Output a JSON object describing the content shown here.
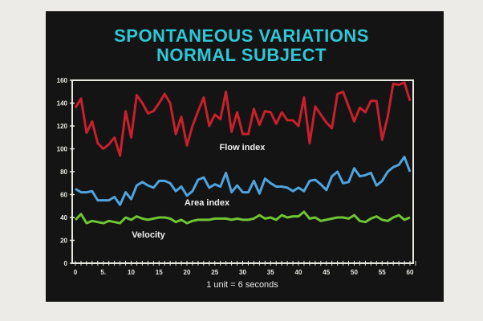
{
  "chart_data": {
    "type": "line",
    "title": "SPONTANEOUS VARIATIONS",
    "subtitle": "NORMAL SUBJECT",
    "xlabel": "1 unit = 6 seconds",
    "ylabel": "",
    "xlim": [
      0,
      61
    ],
    "ylim": [
      0,
      160
    ],
    "xticks": [
      0,
      5,
      10,
      15,
      20,
      25,
      30,
      35,
      40,
      45,
      50,
      55,
      60
    ],
    "xtick_labels": [
      "0",
      "5.",
      "10",
      "15",
      "20",
      "25",
      "30",
      "35",
      "40",
      "45",
      "50",
      "55",
      "60"
    ],
    "yticks": [
      0,
      20,
      40,
      60,
      80,
      100,
      120,
      140,
      160
    ],
    "grid": false,
    "background": "#141414",
    "series": [
      {
        "name": "Flow index",
        "color": "#c8202c",
        "values": [
          136,
          144,
          114,
          124,
          105,
          100,
          104,
          110,
          94,
          133,
          110,
          147,
          140,
          131,
          133,
          140,
          148,
          140,
          113,
          128,
          103,
          120,
          133,
          145,
          120,
          130,
          126,
          150,
          115,
          132,
          113,
          113,
          135,
          121,
          133,
          132,
          122,
          132,
          125,
          125,
          120,
          145,
          105,
          137,
          130,
          123,
          118,
          148,
          150,
          137,
          124,
          136,
          132,
          142,
          142,
          108,
          128,
          157,
          156,
          158,
          142
        ]
      },
      {
        "name": "Area index",
        "color": "#4fa3df",
        "values": [
          65,
          62,
          62,
          63,
          55,
          55,
          55,
          58,
          51,
          62,
          56,
          68,
          71,
          68,
          66,
          72,
          72,
          70,
          63,
          67,
          59,
          63,
          73,
          75,
          66,
          69,
          67,
          79,
          62,
          68,
          62,
          62,
          72,
          61,
          74,
          70,
          67,
          67,
          66,
          63,
          66,
          63,
          72,
          73,
          69,
          64,
          76,
          80,
          70,
          71,
          83,
          76,
          77,
          79,
          68,
          72,
          80,
          84,
          86,
          93,
          80
        ]
      },
      {
        "name": "Velocity",
        "color": "#6fc534",
        "values": [
          38,
          43,
          35,
          37,
          36,
          35,
          37,
          36,
          35,
          40,
          38,
          41,
          39,
          38,
          39,
          40,
          40,
          39,
          36,
          38,
          35,
          37,
          38,
          38,
          38,
          39,
          39,
          39,
          38,
          39,
          38,
          38,
          39,
          42,
          39,
          40,
          38,
          42,
          40,
          41,
          41,
          45,
          39,
          40,
          37,
          38,
          39,
          40,
          40,
          39,
          42,
          37,
          36,
          39,
          41,
          38,
          37,
          40,
          42,
          38,
          40
        ]
      }
    ]
  }
}
